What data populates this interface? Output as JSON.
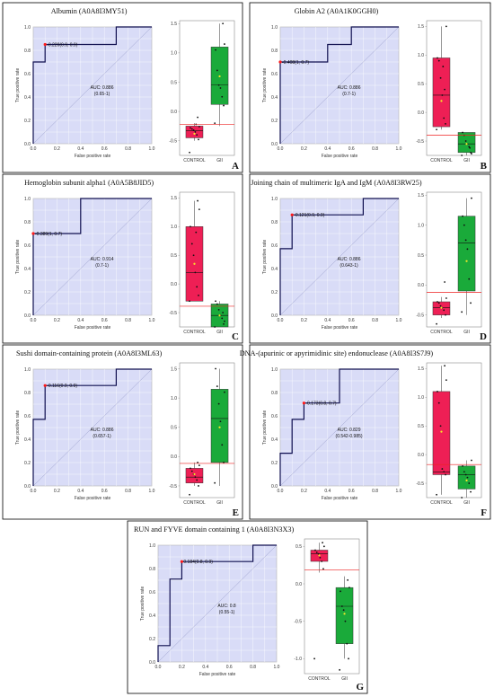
{
  "chart_data": [
    {
      "type": "line",
      "letter": "A",
      "title": "Albumin (A0A8I3MY51)",
      "xlabel": "False positive rate",
      "ylabel": "True positive rate",
      "xlim": [
        0,
        1
      ],
      "ylim": [
        0,
        1
      ],
      "roc": {
        "x": [
          0,
          0,
          0.1,
          0.1,
          0.7,
          0.7,
          1
        ],
        "y": [
          0,
          0.7,
          0.7,
          0.85,
          0.85,
          1,
          1
        ]
      },
      "cutoff": {
        "x": 0.1,
        "y": 0.85,
        "label": "-0.220(0.9, 0.9)"
      },
      "auc": "AUC: 0.886",
      "auc_ci": "(0.65-1)",
      "box": {
        "ylim": [
          -0.75,
          1.55
        ],
        "ticks": [
          -0.5,
          0.0,
          0.5,
          1.0,
          1.5
        ],
        "tick_labels": [
          "-0.5",
          "0.0",
          "0.5",
          "1.0",
          "1.5"
        ],
        "threshold": -0.22,
        "groups": [
          {
            "name": "CONTROL",
            "q1": -0.45,
            "median": -0.33,
            "q3": -0.25,
            "low": -0.5,
            "high": -0.2,
            "mean": -0.38,
            "points": [
              -0.7,
              -0.48,
              -0.4,
              -0.35,
              -0.32,
              -0.3,
              -0.28,
              -0.26,
              -0.1,
              -0.22
            ]
          },
          {
            "name": "GII",
            "q1": 0.12,
            "median": 0.45,
            "q3": 1.1,
            "low": -0.25,
            "high": 1.5,
            "mean": 0.6,
            "points": [
              -0.2,
              0.1,
              0.25,
              0.4,
              0.45,
              0.7,
              1.05,
              1.15,
              1.5
            ]
          }
        ]
      }
    },
    {
      "type": "line",
      "letter": "B",
      "title": "Globin A2 (A0A1K0GGH0)",
      "xlabel": "False positive rate",
      "ylabel": "True positive rate",
      "xlim": [
        0,
        1
      ],
      "ylim": [
        0,
        1
      ],
      "roc": {
        "x": [
          0,
          0,
          0.4,
          0.4,
          0.6,
          0.6,
          1
        ],
        "y": [
          0,
          0.7,
          0.7,
          0.85,
          0.85,
          1,
          1
        ]
      },
      "cutoff": {
        "x": 0.0,
        "y": 0.7,
        "label": "-0.408(1, 0.7)"
      },
      "auc": "AUC: 0.886",
      "auc_ci": "(0.7-1)",
      "box": {
        "ylim": [
          -0.75,
          1.6
        ],
        "ticks": [
          -0.5,
          0.0,
          0.5,
          1.0,
          1.5
        ],
        "tick_labels": [
          "-0.5",
          "0.0",
          "0.5",
          "1.0",
          "1.5"
        ],
        "threshold": -0.4,
        "groups": [
          {
            "name": "CONTROL",
            "q1": -0.25,
            "median": 0.3,
            "q3": 0.95,
            "low": -0.3,
            "high": 1.5,
            "mean": 0.2,
            "points": [
              -0.3,
              -0.2,
              -0.1,
              0.3,
              0.6,
              0.9,
              0.95,
              1.5,
              0.4,
              0.8
            ]
          },
          {
            "name": "GII",
            "q1": -0.7,
            "median": -0.55,
            "q3": -0.35,
            "low": -0.75,
            "high": -0.35,
            "mean": -0.55,
            "points": [
              -0.75,
              -0.7,
              -0.6,
              -0.55,
              -0.5,
              -0.4,
              -0.35,
              -0.72,
              -0.62
            ]
          }
        ]
      }
    },
    {
      "type": "line",
      "letter": "C",
      "title": "Hemoglobin subunit alpha1 (A0A5B8JID5)",
      "xlabel": "False positive rate",
      "ylabel": "True positive rate",
      "xlim": [
        0,
        1
      ],
      "ylim": [
        0,
        1
      ],
      "roc": {
        "x": [
          0,
          0,
          0.4,
          0.4,
          1
        ],
        "y": [
          0,
          0.7,
          0.7,
          1,
          1
        ]
      },
      "cutoff": {
        "x": 0.0,
        "y": 0.7,
        "label": "-0.389(1, 0.7)"
      },
      "auc": "AUC: 0.914",
      "auc_ci": "(0.7-1)",
      "box": {
        "ylim": [
          -0.75,
          1.6
        ],
        "ticks": [
          -0.5,
          0.0,
          0.5,
          1.0,
          1.5
        ],
        "tick_labels": [
          "-0.5",
          "0.0",
          "0.5",
          "1.0",
          "1.5"
        ],
        "threshold": -0.389,
        "groups": [
          {
            "name": "CONTROL",
            "q1": -0.3,
            "median": 0.2,
            "q3": 1.0,
            "low": -0.3,
            "high": 1.45,
            "mean": 0.35,
            "points": [
              -0.3,
              -0.2,
              -0.05,
              0.2,
              0.5,
              0.7,
              1.0,
              1.3,
              1.45,
              0.9
            ]
          },
          {
            "name": "GII",
            "q1": -0.75,
            "median": -0.55,
            "q3": -0.35,
            "low": -0.75,
            "high": -0.3,
            "mean": -0.55,
            "points": [
              -0.75,
              -0.7,
              -0.6,
              -0.55,
              -0.45,
              -0.35,
              -0.3,
              -0.65,
              -0.5
            ]
          }
        ]
      }
    },
    {
      "type": "line",
      "letter": "D",
      "title": "Joining chain of multimeric IgA and IgM (A0A8I3RW25)",
      "xlabel": "False positive rate",
      "ylabel": "True positive rate",
      "xlim": [
        0,
        1
      ],
      "ylim": [
        0,
        1
      ],
      "roc": {
        "x": [
          0,
          0,
          0.1,
          0.1,
          0.7,
          0.7,
          1
        ],
        "y": [
          0,
          0.57,
          0.57,
          0.86,
          0.86,
          1,
          1
        ]
      },
      "cutoff": {
        "x": 0.1,
        "y": 0.86,
        "label": "-0.121(0.9, 0.9)"
      },
      "auc": "AUC: 0.886",
      "auc_ci": "(0.643-1)",
      "box": {
        "ylim": [
          -0.7,
          1.55
        ],
        "ticks": [
          -0.5,
          0.0,
          0.5,
          1.0,
          1.5
        ],
        "tick_labels": [
          "-0.5",
          "0.0",
          "0.5",
          "1.0",
          "1.5"
        ],
        "threshold": -0.121,
        "groups": [
          {
            "name": "CONTROL",
            "q1": -0.5,
            "median": -0.38,
            "q3": -0.28,
            "low": -0.55,
            "high": -0.2,
            "mean": -0.38,
            "points": [
              -0.65,
              -0.5,
              -0.42,
              -0.38,
              -0.35,
              -0.3,
              -0.28,
              -0.22,
              0.05
            ]
          },
          {
            "name": "GII",
            "q1": -0.1,
            "median": 0.7,
            "q3": 1.15,
            "low": -0.5,
            "high": 1.45,
            "mean": 0.4,
            "points": [
              -0.45,
              -0.3,
              0.1,
              0.6,
              0.75,
              1.0,
              1.15,
              1.45
            ]
          }
        ]
      }
    },
    {
      "type": "line",
      "letter": "E",
      "title": "Sushi domain-containing protein (A0A8I3ML63)",
      "xlabel": "False positive rate",
      "ylabel": "True positive rate",
      "xlim": [
        0,
        1
      ],
      "ylim": [
        0,
        1
      ],
      "roc": {
        "x": [
          0,
          0,
          0.1,
          0.1,
          0.7,
          0.7,
          1
        ],
        "y": [
          0,
          0.57,
          0.57,
          0.86,
          0.86,
          1,
          1
        ]
      },
      "cutoff": {
        "x": 0.1,
        "y": 0.86,
        "label": "-0.116(0.9, 0.9)"
      },
      "auc": "AUC: 0.886",
      "auc_ci": "(0.657-1)",
      "box": {
        "ylim": [
          -0.7,
          1.6
        ],
        "ticks": [
          -0.5,
          0.0,
          0.5,
          1.0,
          1.5
        ],
        "tick_labels": [
          "-0.5",
          "0.0",
          "0.5",
          "1.0",
          "1.5"
        ],
        "threshold": -0.116,
        "groups": [
          {
            "name": "CONTROL",
            "q1": -0.45,
            "median": -0.35,
            "q3": -0.2,
            "low": -0.5,
            "high": -0.1,
            "mean": -0.3,
            "points": [
              -0.65,
              -0.5,
              -0.4,
              -0.35,
              -0.3,
              -0.25,
              -0.2,
              -0.15,
              -0.1
            ]
          },
          {
            "name": "GII",
            "q1": -0.1,
            "median": 0.65,
            "q3": 1.15,
            "low": -0.5,
            "high": 1.5,
            "mean": 0.5,
            "points": [
              -0.45,
              -0.1,
              0.2,
              0.6,
              0.9,
              1.2,
              1.5,
              1.1
            ]
          }
        ]
      }
    },
    {
      "type": "line",
      "letter": "F",
      "title": "DNA-(apurinic or apyrimidinic site) endonuclease (A0A8I3S7J9)",
      "xlabel": "False positive rate",
      "ylabel": "True positive rate",
      "xlim": [
        0,
        1
      ],
      "ylim": [
        0,
        1
      ],
      "roc": {
        "x": [
          0,
          0,
          0.1,
          0.1,
          0.2,
          0.2,
          0.5,
          0.5,
          1
        ],
        "y": [
          0,
          0.28,
          0.28,
          0.57,
          0.57,
          0.71,
          0.71,
          1,
          1
        ]
      },
      "cutoff": {
        "x": 0.2,
        "y": 0.71,
        "label": "-0.173(0.8, 0.7)"
      },
      "auc": "AUC: 0.829",
      "auc_ci": "(0.542-0.985)",
      "box": {
        "ylim": [
          -0.75,
          1.6
        ],
        "ticks": [
          -0.5,
          0.0,
          0.5,
          1.0,
          1.5
        ],
        "tick_labels": [
          "-0.5",
          "0.0",
          "0.5",
          "1.0",
          "1.5"
        ],
        "threshold": -0.173,
        "groups": [
          {
            "name": "CONTROL",
            "q1": -0.35,
            "median": -0.3,
            "q3": 1.1,
            "low": -0.7,
            "high": 1.55,
            "mean": 0.4,
            "points": [
              -0.7,
              -0.35,
              -0.3,
              -0.25,
              0.5,
              0.9,
              1.1,
              1.3,
              1.55
            ]
          },
          {
            "name": "GII",
            "q1": -0.6,
            "median": -0.35,
            "q3": -0.2,
            "low": -0.75,
            "high": -0.1,
            "mean": -0.45,
            "points": [
              -0.75,
              -0.65,
              -0.5,
              -0.4,
              -0.35,
              -0.3,
              -0.2,
              -0.1
            ]
          }
        ]
      }
    },
    {
      "type": "line",
      "letter": "G",
      "title": "RUN and FYVE domain containing 1 (A0A8I3N3X3)",
      "xlabel": "False positive rate",
      "ylabel": "True positive rate",
      "xlim": [
        0,
        1
      ],
      "ylim": [
        0,
        1
      ],
      "roc": {
        "x": [
          0,
          0,
          0.1,
          0.1,
          0.2,
          0.2,
          0.8,
          0.8,
          1
        ],
        "y": [
          0,
          0.14,
          0.14,
          0.71,
          0.71,
          0.86,
          0.86,
          1,
          1
        ]
      },
      "cutoff": {
        "x": 0.2,
        "y": 0.86,
        "label": "0.184(0.8, 0.9)"
      },
      "auc": "AUC: 0.8",
      "auc_ci": "(0.55-1)",
      "box": {
        "ylim": [
          -1.2,
          0.6
        ],
        "ticks": [
          -1.0,
          -0.5,
          0.0,
          0.5
        ],
        "tick_labels": [
          "-1.0",
          "-0.5",
          "0.0",
          "0.5"
        ],
        "threshold": 0.184,
        "groups": [
          {
            "name": "CONTROL",
            "q1": 0.3,
            "median": 0.4,
            "q3": 0.45,
            "low": 0.15,
            "high": 0.55,
            "mean": 0.38,
            "points": [
              -1.0,
              0.2,
              0.3,
              0.35,
              0.4,
              0.42,
              0.45,
              0.5,
              0.55
            ]
          },
          {
            "name": "GII",
            "q1": -0.8,
            "median": -0.3,
            "q3": -0.05,
            "low": -1.0,
            "high": 0.1,
            "mean": -0.4,
            "points": [
              -1.15,
              -1.0,
              -0.8,
              -0.5,
              -0.35,
              -0.3,
              -0.1,
              -0.05,
              0.05
            ]
          }
        ]
      }
    }
  ]
}
